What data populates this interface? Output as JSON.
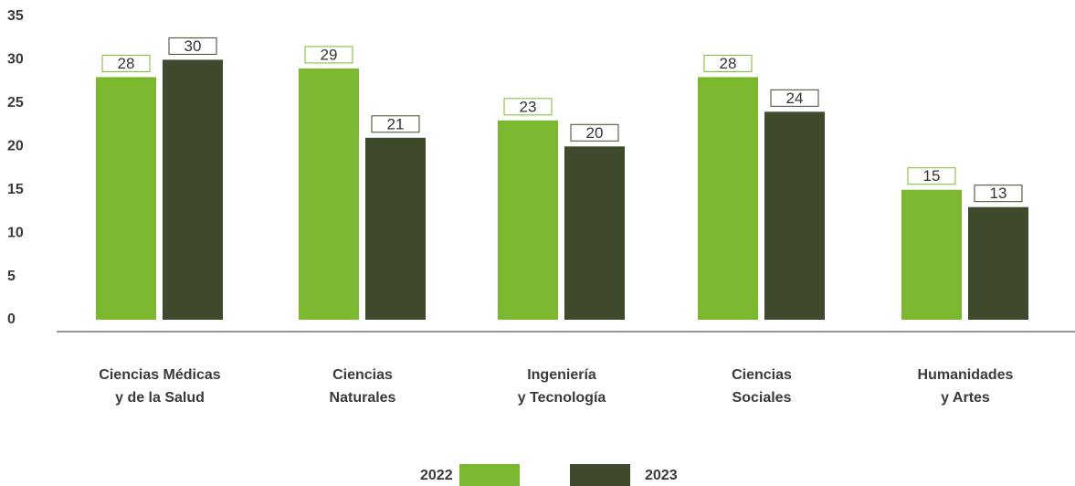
{
  "chart_data": {
    "type": "bar",
    "categories": [
      [
        "Ciencias Médicas",
        "y de la Salud"
      ],
      [
        "Ciencias",
        "Naturales"
      ],
      [
        "Ingeniería",
        "y Tecnología"
      ],
      [
        "Ciencias",
        "Sociales"
      ],
      [
        "Humanidades",
        "y Artes"
      ]
    ],
    "series": [
      {
        "name": "2022",
        "color": "#7cb82f",
        "values": [
          28,
          29,
          23,
          28,
          15
        ]
      },
      {
        "name": "2023",
        "color": "#3e4a2b",
        "values": [
          30,
          21,
          20,
          24,
          13
        ]
      }
    ],
    "ylim": [
      0,
      35
    ],
    "yticks": [
      0,
      5,
      10,
      15,
      20,
      25,
      30,
      35
    ]
  }
}
